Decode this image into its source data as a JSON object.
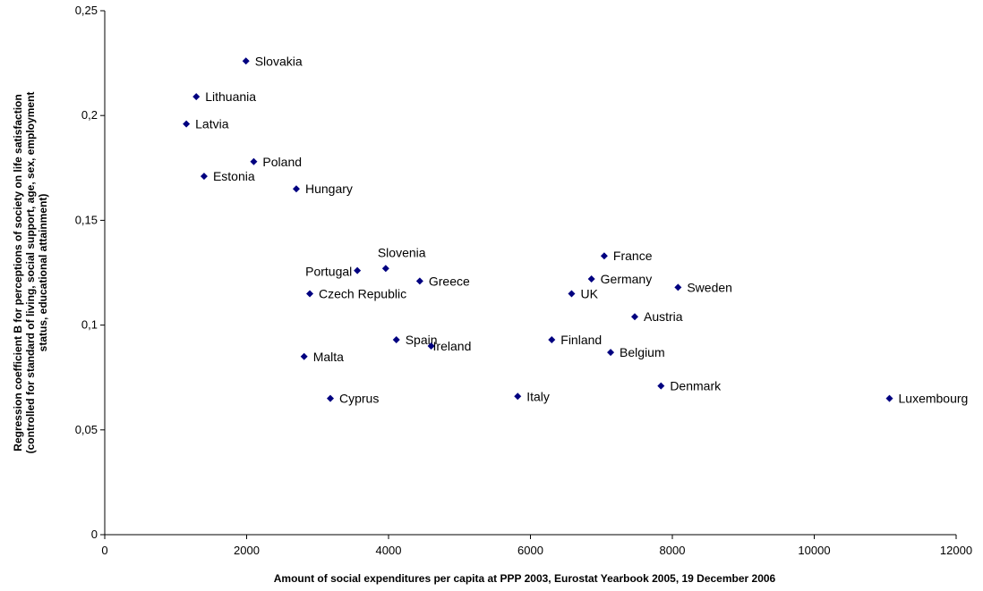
{
  "chart_data": {
    "type": "scatter",
    "xlabel": "Amount of social expenditures per capita at PPP 2003, Eurostat Yearbook 2005, 19 December 2006",
    "ylabel_lines": [
      "Regression coefficient B for perceptions of society on life satisfaction",
      "(controlled for standard of living, social support, age, sex, employment",
      "status, educational attainment)"
    ],
    "xlim": [
      0,
      12000
    ],
    "ylim": [
      0,
      0.25
    ],
    "x_ticks": [
      0,
      2000,
      4000,
      6000,
      8000,
      10000,
      12000
    ],
    "x_tick_labels": [
      "0",
      "2000",
      "4000",
      "6000",
      "8000",
      "10000",
      "12000"
    ],
    "y_ticks": [
      0,
      0.05,
      0.1,
      0.15,
      0.2,
      0.25
    ],
    "y_tick_labels": [
      "0",
      "0,05",
      "0,1",
      "0,15",
      "0,2",
      "0,25"
    ],
    "grid": false,
    "marker_color": "#000080",
    "points": [
      {
        "label": "Slovakia",
        "x": 1990,
        "y": 0.226
      },
      {
        "label": "Lithuania",
        "x": 1290,
        "y": 0.209
      },
      {
        "label": "Latvia",
        "x": 1150,
        "y": 0.196
      },
      {
        "label": "Poland",
        "x": 2100,
        "y": 0.178
      },
      {
        "label": "Estonia",
        "x": 1400,
        "y": 0.171
      },
      {
        "label": "Hungary",
        "x": 2700,
        "y": 0.165
      },
      {
        "label": "Slovenia",
        "x": 3960,
        "y": 0.127
      },
      {
        "label": "Portugal",
        "x": 3560,
        "y": 0.126
      },
      {
        "label": "Greece",
        "x": 4440,
        "y": 0.121
      },
      {
        "label": "Czech Republic",
        "x": 2890,
        "y": 0.115
      },
      {
        "label": "France",
        "x": 7040,
        "y": 0.133
      },
      {
        "label": "Germany",
        "x": 6860,
        "y": 0.122
      },
      {
        "label": "UK",
        "x": 6580,
        "y": 0.115
      },
      {
        "label": "Sweden",
        "x": 8080,
        "y": 0.118
      },
      {
        "label": "Austria",
        "x": 7470,
        "y": 0.104
      },
      {
        "label": "Spain",
        "x": 4110,
        "y": 0.093
      },
      {
        "label": "Ireland",
        "x": 4600,
        "y": 0.09
      },
      {
        "label": "Finland",
        "x": 6300,
        "y": 0.093
      },
      {
        "label": "Belgium",
        "x": 7130,
        "y": 0.087
      },
      {
        "label": "Malta",
        "x": 2810,
        "y": 0.085
      },
      {
        "label": "Denmark",
        "x": 7840,
        "y": 0.071
      },
      {
        "label": "Cyprus",
        "x": 3180,
        "y": 0.065
      },
      {
        "label": "Italy",
        "x": 5820,
        "y": 0.066
      },
      {
        "label": "Luxembourg",
        "x": 11060,
        "y": 0.065
      }
    ]
  }
}
